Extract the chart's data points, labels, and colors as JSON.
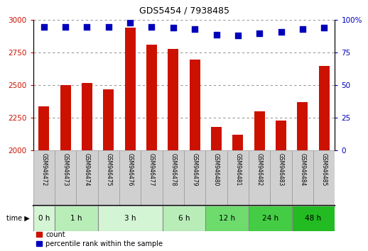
{
  "title": "GDS5454 / 7938485",
  "samples": [
    "GSM946472",
    "GSM946473",
    "GSM946474",
    "GSM946475",
    "GSM946476",
    "GSM946477",
    "GSM946478",
    "GSM946479",
    "GSM946480",
    "GSM946481",
    "GSM946482",
    "GSM946483",
    "GSM946484",
    "GSM946485"
  ],
  "counts": [
    2340,
    2500,
    2520,
    2470,
    2940,
    2810,
    2780,
    2700,
    2180,
    2120,
    2300,
    2230,
    2370,
    2650
  ],
  "percentile_ranks": [
    95,
    95,
    95,
    95,
    98,
    95,
    94,
    93,
    89,
    88,
    90,
    91,
    93,
    94
  ],
  "time_groups": [
    {
      "label": "0 h",
      "indices": [
        0
      ],
      "color": "#d4f5d4"
    },
    {
      "label": "1 h",
      "indices": [
        1,
        2
      ],
      "color": "#b8edb8"
    },
    {
      "label": "3 h",
      "indices": [
        3,
        4,
        5
      ],
      "color": "#d4f5d4"
    },
    {
      "label": "6 h",
      "indices": [
        6,
        7
      ],
      "color": "#b8edb8"
    },
    {
      "label": "12 h",
      "indices": [
        8,
        9
      ],
      "color": "#6ddc6d"
    },
    {
      "label": "24 h",
      "indices": [
        10,
        11
      ],
      "color": "#44cc44"
    },
    {
      "label": "48 h",
      "indices": [
        12,
        13
      ],
      "color": "#22bb22"
    }
  ],
  "ylim_left": [
    2000,
    3000
  ],
  "ylim_right": [
    0,
    100
  ],
  "yticks_left": [
    2000,
    2250,
    2500,
    2750,
    3000
  ],
  "yticks_right": [
    0,
    25,
    50,
    75,
    100
  ],
  "bar_color": "#cc1100",
  "dot_color": "#0000bb",
  "bar_width": 0.5,
  "dot_size": 40,
  "dot_marker": "s",
  "grid_color": "#000000",
  "grid_alpha": 0.4,
  "left_label_color": "#cc1100",
  "right_label_color": "#0000bb",
  "label_count": "count",
  "label_percentile": "percentile rank within the sample",
  "sample_box_color": "#d0d0d0",
  "sample_box_edge": "#999999"
}
